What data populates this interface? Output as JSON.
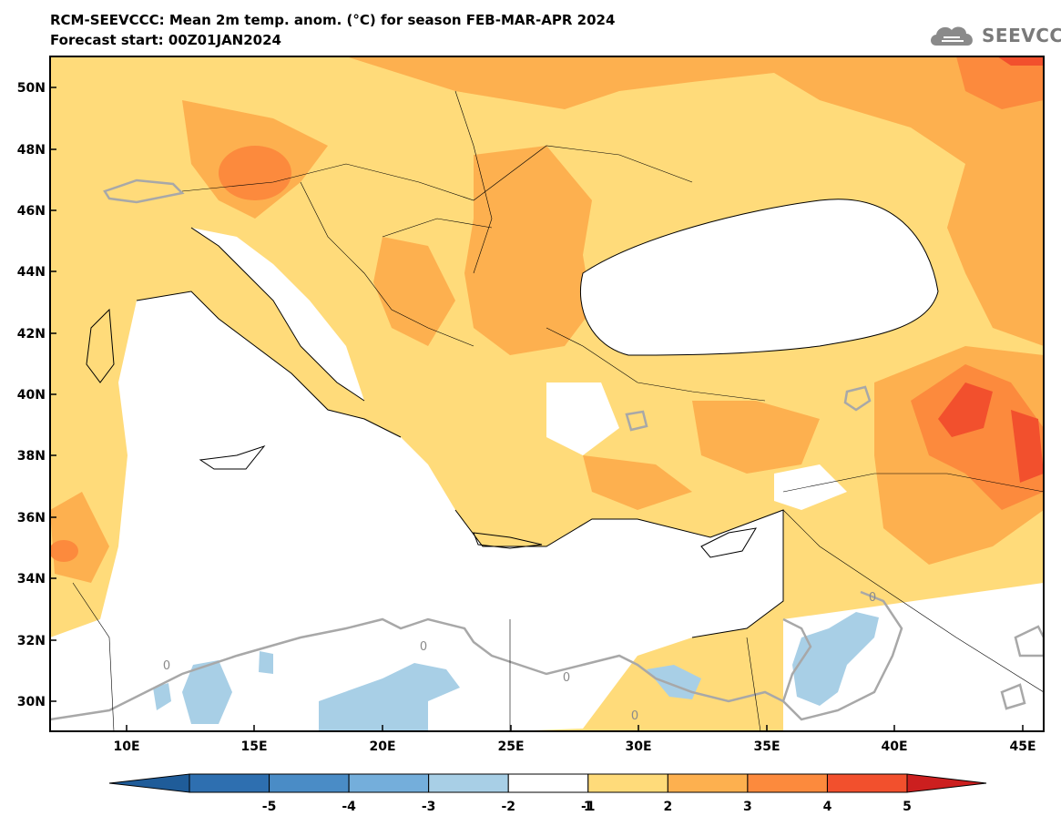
{
  "title": {
    "line1": "RCM-SEEVCCC: Mean 2m temp. anom. (°C) for season FEB-MAR-APR 2024",
    "line2": "Forecast start: 00Z01JAN2024"
  },
  "logo": {
    "text": "SEEVCCC",
    "icon": "cloud-icon"
  },
  "map": {
    "lat_ticks": [
      "50N",
      "48N",
      "46N",
      "44N",
      "42N",
      "40N",
      "38N",
      "36N",
      "34N",
      "32N",
      "30N"
    ],
    "lon_ticks": [
      "10E",
      "15E",
      "20E",
      "25E",
      "30E",
      "35E",
      "40E",
      "45E"
    ],
    "contour_labels": [
      "0",
      "0",
      "0",
      "0",
      "0"
    ]
  },
  "colorbar": {
    "labels": [
      "-5",
      "-4",
      "-3",
      "-2",
      "-1",
      "1",
      "2",
      "3",
      "4",
      "5"
    ],
    "colors": [
      "#1f5c99",
      "#2e6fb0",
      "#4a8cc6",
      "#74aedb",
      "#a8cfe6",
      "#ffffff",
      "#ffdb7a",
      "#fdb04f",
      "#fc8a3d",
      "#f2502d",
      "#cc1f1f"
    ]
  }
}
